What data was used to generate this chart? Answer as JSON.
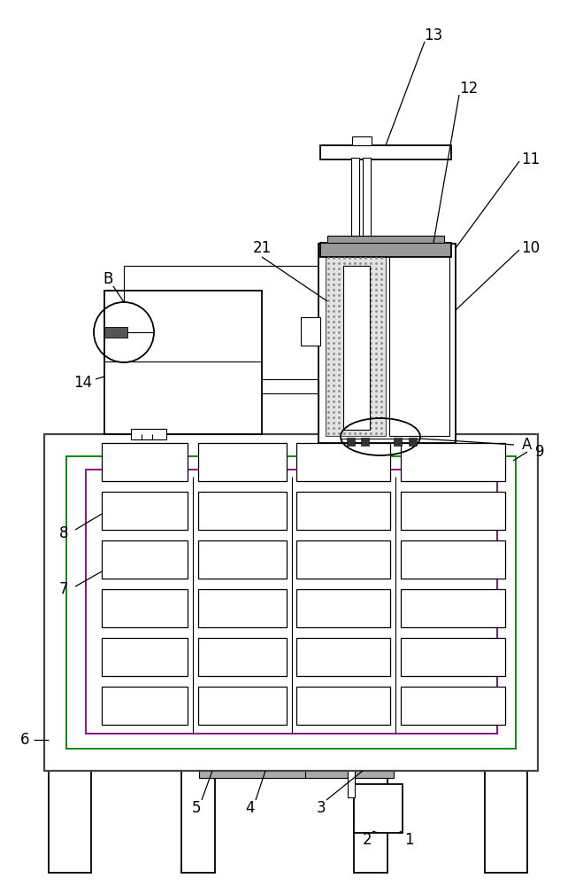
{
  "bg_color": "#ffffff",
  "fig_width": 6.59,
  "fig_height": 10.0,
  "lw_main": 1.3,
  "lw_thin": 0.8,
  "lw_thick": 1.6
}
